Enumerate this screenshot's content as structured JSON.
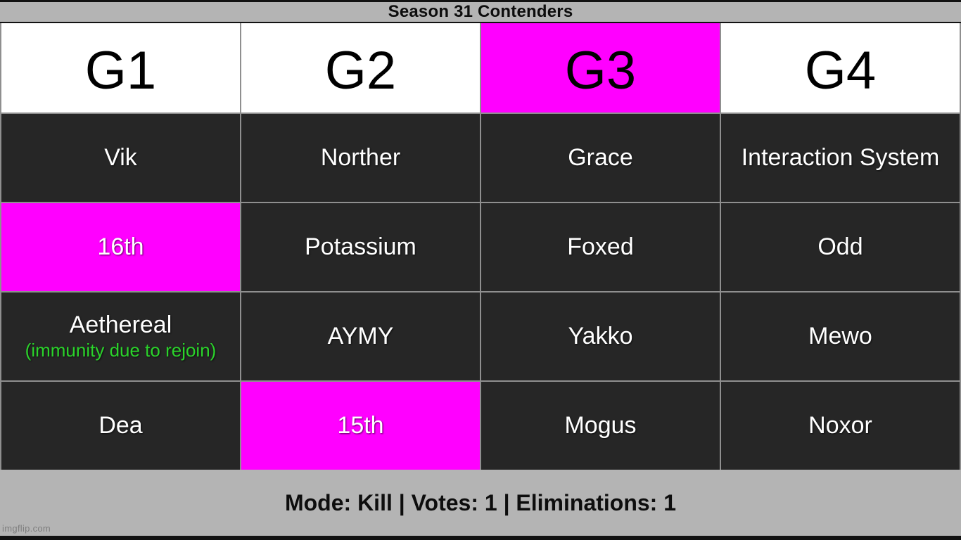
{
  "page": {
    "title": "Season 31 Contenders",
    "footer": "Mode: Kill | Votes: 1 | Eliminations: 1",
    "watermark": "imgflip.com"
  },
  "colors": {
    "highlight_magenta": "#ff00ff",
    "cell_dark": "#262626",
    "bar_gray": "#b4b4b4",
    "divider_gray": "#8f8f8f",
    "immunity_green": "#2bd32b",
    "header_white": "#ffffff"
  },
  "table": {
    "columns": [
      {
        "label": "G1",
        "highlight": false
      },
      {
        "label": "G2",
        "highlight": false
      },
      {
        "label": "G3",
        "highlight": true
      },
      {
        "label": "G4",
        "highlight": false
      }
    ],
    "rows": [
      [
        {
          "text": "Vik",
          "highlight": false
        },
        {
          "text": "Norther",
          "highlight": false
        },
        {
          "text": "Grace",
          "highlight": false
        },
        {
          "text": "Interaction System",
          "highlight": false
        }
      ],
      [
        {
          "text": "16th",
          "highlight": true
        },
        {
          "text": "Potassium",
          "highlight": false
        },
        {
          "text": "Foxed",
          "highlight": false
        },
        {
          "text": "Odd",
          "highlight": false
        }
      ],
      [
        {
          "text": "Aethereal",
          "note": "(immunity due to rejoin)",
          "highlight": false
        },
        {
          "text": "AYMY",
          "highlight": false
        },
        {
          "text": "Yakko",
          "highlight": false
        },
        {
          "text": "Mewo",
          "highlight": false
        }
      ],
      [
        {
          "text": "Dea",
          "highlight": false
        },
        {
          "text": "15th",
          "highlight": true
        },
        {
          "text": "Mogus",
          "highlight": false
        },
        {
          "text": "Noxor",
          "highlight": false
        }
      ]
    ]
  },
  "chart_data": {
    "type": "table",
    "title": "Season 31 Contenders",
    "columns": [
      "G1",
      "G2",
      "G3",
      "G4"
    ],
    "rows": [
      [
        "Vik",
        "Norther",
        "Grace",
        "Interaction System"
      ],
      [
        "16th",
        "Potassium",
        "Foxed",
        "Odd"
      ],
      [
        "Aethereal (immunity due to rejoin)",
        "AYMY",
        "Yakko",
        "Mewo"
      ],
      [
        "Dea",
        "15th",
        "Mogus",
        "Noxor"
      ]
    ],
    "highlighted_cells": [
      {
        "column": "G3",
        "row": "header",
        "value": "G3"
      },
      {
        "column": "G1",
        "row": 2,
        "value": "16th"
      },
      {
        "column": "G2",
        "row": 4,
        "value": "15th"
      }
    ],
    "footer": "Mode: Kill | Votes: 1 | Eliminations: 1",
    "layout": {
      "highlight_color": "#ff00ff",
      "grid": "4 columns x 5 rows"
    }
  }
}
